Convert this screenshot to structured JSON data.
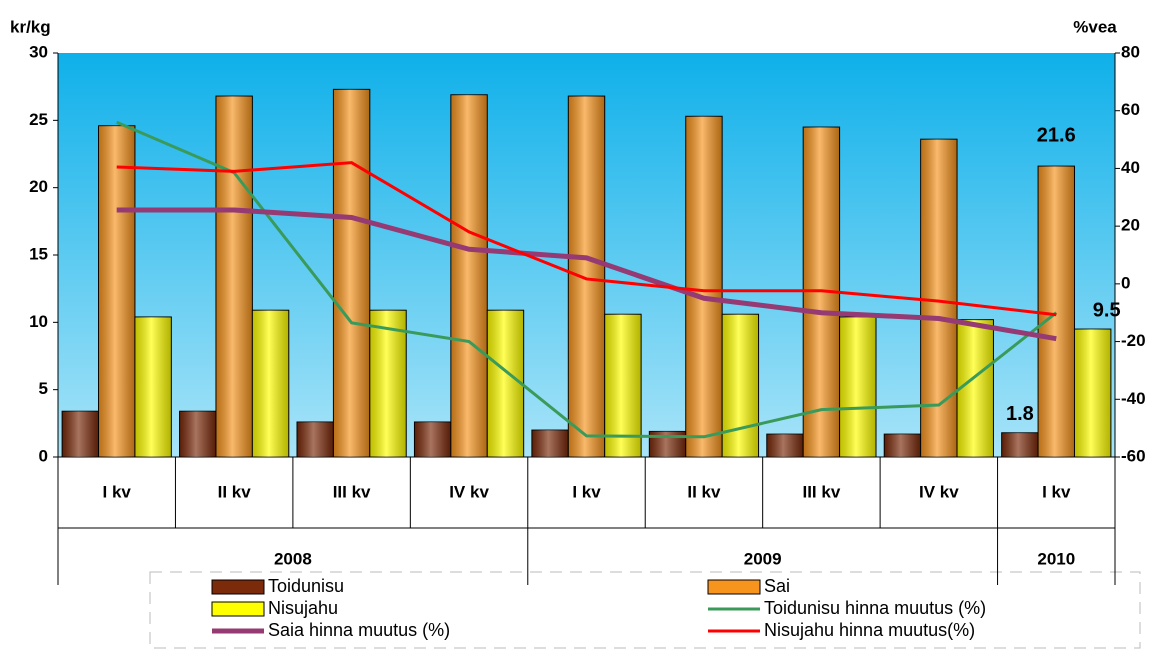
{
  "chart_data": {
    "type": "combo",
    "y_label": "kr/kg",
    "y2_label": "%vea",
    "categories": [
      "I kv",
      "II kv",
      "III kv",
      "IV kv",
      "I kv",
      "II kv",
      "III kv",
      "IV kv",
      "I kv"
    ],
    "groups": [
      {
        "label": "2008",
        "span": 4
      },
      {
        "label": "2009",
        "span": 4
      },
      {
        "label": "2010",
        "span": 1
      }
    ],
    "ylim": [
      0,
      30
    ],
    "yticks": [
      0,
      5,
      10,
      15,
      20,
      25,
      30
    ],
    "y2lim": [
      -60,
      80
    ],
    "y2ticks": [
      -60,
      -40,
      -20,
      0,
      20,
      40,
      60,
      80
    ],
    "series": [
      {
        "name": "Toidunisu",
        "type": "bar",
        "color": "#7b2a0a",
        "values": [
          3.4,
          3.4,
          2.6,
          2.6,
          2.0,
          1.9,
          1.7,
          1.7,
          1.8
        ],
        "value_labels": [
          null,
          null,
          null,
          null,
          null,
          null,
          null,
          null,
          "1.8"
        ]
      },
      {
        "name": "Sai",
        "type": "bar",
        "color": "#f7941d",
        "values": [
          24.6,
          26.8,
          27.3,
          26.9,
          26.8,
          25.3,
          24.5,
          23.6,
          21.6
        ],
        "value_labels": [
          null,
          null,
          null,
          null,
          null,
          null,
          null,
          null,
          "21.6"
        ]
      },
      {
        "name": "Nisujahu",
        "type": "bar",
        "color": "#ffff00",
        "values": [
          10.4,
          10.9,
          10.9,
          10.9,
          10.6,
          10.6,
          10.4,
          10.2,
          9.5
        ],
        "value_labels": [
          null,
          null,
          null,
          null,
          null,
          null,
          null,
          null,
          "9.5"
        ]
      },
      {
        "name": "Toidunisu hinna muutus (%)",
        "type": "line",
        "axis": "y2",
        "color": "#3a9a5a",
        "width": 3,
        "values": [
          56,
          38.5,
          -13.5,
          -20,
          -52.7,
          -53,
          -43.6,
          -42,
          -10
        ]
      },
      {
        "name": "Saia hinna muutus (%)",
        "type": "line",
        "axis": "y2",
        "color": "#953a72",
        "width": 5,
        "values": [
          25.6,
          25.6,
          23,
          12,
          9,
          -5,
          -10,
          -12,
          -19
        ]
      },
      {
        "name": "Nisujahu hinna muutus(%)",
        "type": "line",
        "axis": "y2",
        "color": "#ff0000",
        "width": 3,
        "values": [
          40.5,
          39,
          42,
          18,
          1.7,
          -2.4,
          -2.4,
          -6,
          -10.7
        ]
      }
    ]
  }
}
